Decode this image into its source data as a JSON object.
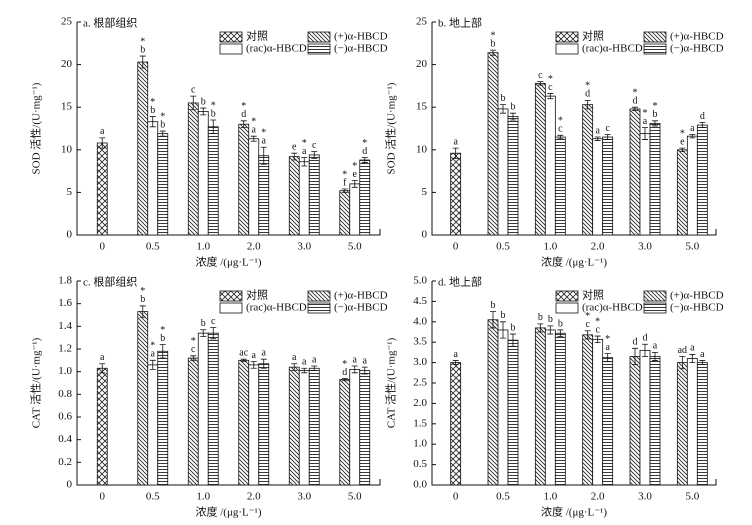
{
  "chart_data": [
    {
      "type": "bar",
      "title": "a. 根部组织",
      "xlabel": "浓度 /(μg·L⁻¹)",
      "ylabel": "SOD 活性/(U·mg⁻¹)",
      "categories": [
        "0",
        "0.5",
        "1.0",
        "2.0",
        "3.0",
        "5.0"
      ],
      "ylim": [
        0,
        25
      ],
      "yticks": [
        0,
        5,
        10,
        15,
        20,
        25
      ],
      "series": [
        {
          "name": "对照",
          "pattern": "cross",
          "values": [
            10.8,
            null,
            null,
            null,
            null,
            null
          ],
          "errors": [
            0.6,
            null,
            null,
            null,
            null,
            null
          ],
          "letters": [
            [
              "a"
            ],
            null,
            null,
            null,
            null,
            null
          ]
        },
        {
          "name": "(+)α-HBCD",
          "pattern": "diagonal",
          "values": [
            null,
            20.3,
            15.5,
            13.0,
            9.2,
            5.2
          ],
          "errors": [
            null,
            0.7,
            0.8,
            0.4,
            0.4,
            0.2
          ],
          "letters": [
            null,
            [
              "*",
              "b"
            ],
            [
              "c"
            ],
            [
              "*",
              "d"
            ],
            [
              "e"
            ],
            [
              "*",
              "f"
            ]
          ]
        },
        {
          "name": "(rac)α-HBCD",
          "pattern": "none",
          "values": [
            null,
            13.3,
            14.5,
            11.3,
            8.6,
            6.0
          ],
          "errors": [
            null,
            0.6,
            0.4,
            0.3,
            0.5,
            0.4
          ],
          "letters": [
            null,
            [
              "*",
              "b"
            ],
            [
              "b"
            ],
            [
              "*",
              "a"
            ],
            [
              "*",
              "a"
            ],
            [
              "*",
              "e"
            ]
          ]
        },
        {
          "name": "(−)α-HBCD",
          "pattern": "horizontal",
          "values": [
            null,
            11.9,
            12.7,
            9.3,
            9.4,
            8.8
          ],
          "errors": [
            null,
            0.3,
            0.8,
            1.0,
            0.4,
            0.3
          ],
          "letters": [
            null,
            [
              "*",
              "b"
            ],
            [
              "*",
              "b"
            ],
            [
              "*",
              "a"
            ],
            [
              "c"
            ],
            [
              "*",
              "d"
            ]
          ]
        }
      ]
    },
    {
      "type": "bar",
      "title": "b. 地上部",
      "xlabel": "浓度 /(μg·L⁻¹)",
      "ylabel": "SOD 活性/(U·mg⁻¹)",
      "categories": [
        "0",
        "0.5",
        "1.0",
        "2.0",
        "3.0",
        "5.0"
      ],
      "ylim": [
        0,
        25
      ],
      "yticks": [
        0,
        5,
        10,
        15,
        20,
        25
      ],
      "series": [
        {
          "name": "对照",
          "pattern": "cross",
          "values": [
            9.6,
            null,
            null,
            null,
            null,
            null
          ],
          "errors": [
            0.6,
            null,
            null,
            null,
            null,
            null
          ],
          "letters": [
            [
              "a"
            ],
            null,
            null,
            null,
            null,
            null
          ]
        },
        {
          "name": "(+)α-HBCD",
          "pattern": "diagonal",
          "values": [
            null,
            21.4,
            17.8,
            15.3,
            14.8,
            10.0
          ],
          "errors": [
            null,
            0.3,
            0.2,
            0.5,
            0.2,
            0.2
          ],
          "letters": [
            null,
            [
              "*",
              "b"
            ],
            [
              "c"
            ],
            [
              "*",
              "d"
            ],
            [
              "*",
              "d"
            ],
            [
              "*",
              "e"
            ]
          ]
        },
        {
          "name": "(rac)α-HBCD",
          "pattern": "none",
          "values": [
            null,
            14.8,
            16.3,
            11.3,
            11.9,
            11.6
          ],
          "errors": [
            null,
            0.5,
            0.3,
            0.2,
            0.7,
            0.2
          ],
          "letters": [
            null,
            [
              "b"
            ],
            [
              "*",
              "c"
            ],
            [
              "a"
            ],
            [
              "*",
              "a"
            ],
            [
              "a"
            ]
          ]
        },
        {
          "name": "(−)α-HBCD",
          "pattern": "horizontal",
          "values": [
            null,
            13.9,
            11.5,
            11.5,
            13.1,
            12.9
          ],
          "errors": [
            null,
            0.4,
            0.2,
            0.3,
            0.3,
            0.3
          ],
          "letters": [
            null,
            [
              "b"
            ],
            [
              "*",
              "c"
            ],
            [
              "c"
            ],
            [
              "*",
              "b"
            ],
            [
              "d"
            ]
          ]
        }
      ]
    },
    {
      "type": "bar",
      "title": "c. 根部组织",
      "xlabel": "浓度 /(μg·L⁻¹)",
      "ylabel": "CAT 活性/(U·mg⁻¹)",
      "categories": [
        "0",
        "0.5",
        "1.0",
        "2.0",
        "3.0",
        "5.0"
      ],
      "ylim": [
        0,
        1.8
      ],
      "yticks": [
        0,
        0.2,
        0.4,
        0.6,
        0.8,
        {
          "value": 1,
          "label": "1.0"
        },
        1.2,
        1.4,
        1.6,
        1.8
      ],
      "series": [
        {
          "name": "对照",
          "pattern": "cross",
          "values": [
            1.03,
            null,
            null,
            null,
            null,
            null
          ],
          "errors": [
            0.04,
            null,
            null,
            null,
            null,
            null
          ],
          "letters": [
            [
              "a"
            ],
            null,
            null,
            null,
            null,
            null
          ]
        },
        {
          "name": "(+)α-HBCD",
          "pattern": "diagonal",
          "values": [
            null,
            1.53,
            1.12,
            1.1,
            1.04,
            0.93
          ],
          "errors": [
            null,
            0.05,
            0.02,
            0.01,
            0.03,
            0.01
          ],
          "letters": [
            null,
            [
              "*",
              "b"
            ],
            [
              "*",
              "c"
            ],
            [
              "ac"
            ],
            [
              "a"
            ],
            [
              "*",
              "d"
            ]
          ]
        },
        {
          "name": "(rac)α-HBCD",
          "pattern": "none",
          "values": [
            null,
            1.06,
            1.34,
            1.06,
            1.01,
            1.02
          ],
          "errors": [
            null,
            0.04,
            0.03,
            0.03,
            0.02,
            0.03
          ],
          "letters": [
            null,
            [
              "*",
              "a"
            ],
            [
              "b"
            ],
            [
              "a"
            ],
            [
              "a"
            ],
            [
              "a"
            ]
          ]
        },
        {
          "name": "(−)α-HBCD",
          "pattern": "horizontal",
          "values": [
            null,
            1.18,
            1.34,
            1.07,
            1.03,
            1.01
          ],
          "errors": [
            null,
            0.06,
            0.05,
            0.04,
            0.02,
            0.03
          ],
          "letters": [
            null,
            [
              "*",
              "b"
            ],
            [
              "c"
            ],
            [
              "a"
            ],
            [
              "a"
            ],
            [
              "a"
            ]
          ]
        }
      ]
    },
    {
      "type": "bar",
      "title": "d. 地上部",
      "xlabel": "浓度 /(μg·L⁻¹)",
      "ylabel": "CAT 活性/(U·mg⁻¹)",
      "categories": [
        "0",
        "0.5",
        "1.0",
        "2.0",
        "3.0",
        "5.0"
      ],
      "ylim": [
        0,
        5
      ],
      "yticks": [
        {
          "value": 0,
          "label": "0.0"
        },
        0.5,
        {
          "value": 1,
          "label": "1.0"
        },
        1.5,
        {
          "value": 2,
          "label": "2.0"
        },
        2.5,
        {
          "value": 3,
          "label": "3.0"
        },
        3.5,
        {
          "value": 4,
          "label": "4.0"
        },
        4.5,
        {
          "value": 5,
          "label": "5.0"
        }
      ],
      "series": [
        {
          "name": "对照",
          "pattern": "cross",
          "values": [
            3.0,
            null,
            null,
            null,
            null,
            null
          ],
          "errors": [
            0.05,
            null,
            null,
            null,
            null,
            null
          ],
          "letters": [
            [
              "a"
            ],
            null,
            null,
            null,
            null,
            null
          ]
        },
        {
          "name": "(+)α-HBCD",
          "pattern": "diagonal",
          "values": [
            null,
            4.05,
            3.85,
            3.68,
            3.15,
            3.0
          ],
          "errors": [
            null,
            0.2,
            0.1,
            0.1,
            0.2,
            0.15
          ],
          "letters": [
            null,
            [
              "b"
            ],
            [
              "b"
            ],
            [
              "*",
              "c"
            ],
            [
              "d"
            ],
            [
              "ad"
            ]
          ]
        },
        {
          "name": "(rac)α-HBCD",
          "pattern": "none",
          "values": [
            null,
            3.8,
            3.8,
            3.57,
            3.3,
            3.1
          ],
          "errors": [
            null,
            0.2,
            0.1,
            0.08,
            0.15,
            0.1
          ],
          "letters": [
            null,
            [
              "b"
            ],
            [
              "b"
            ],
            [
              "*",
              "c"
            ],
            [
              "d"
            ],
            [
              "a"
            ]
          ]
        },
        {
          "name": "(−)α-HBCD",
          "pattern": "horizontal",
          "values": [
            null,
            3.55,
            3.72,
            3.12,
            3.15,
            3.0
          ],
          "errors": [
            null,
            0.15,
            0.08,
            0.1,
            0.1,
            0.05
          ],
          "letters": [
            null,
            [
              "b"
            ],
            [
              "b"
            ],
            [
              "*",
              "a"
            ],
            [
              "a"
            ],
            [
              "a"
            ]
          ]
        }
      ]
    }
  ]
}
